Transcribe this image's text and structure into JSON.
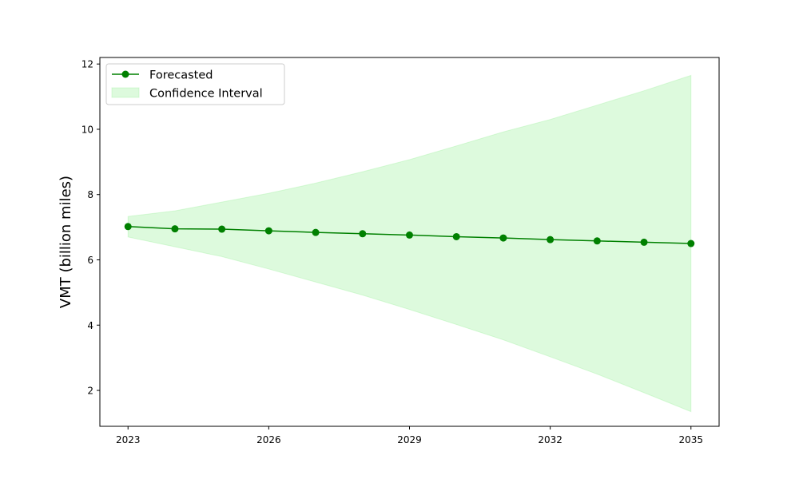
{
  "chart_data": {
    "type": "line",
    "title": "",
    "xlabel": "",
    "ylabel": "VMT (billion miles)",
    "xlim": [
      2022.4,
      2035.6
    ],
    "ylim": [
      0.9,
      12.2
    ],
    "x_ticks": [
      2023,
      2026,
      2029,
      2032,
      2035
    ],
    "y_ticks": [
      2,
      4,
      6,
      8,
      10,
      12
    ],
    "grid": false,
    "legend_position": "top-left",
    "series": [
      {
        "name": "Forecasted",
        "color": "#008000",
        "marker": "circle",
        "x": [
          2023,
          2024,
          2025,
          2026,
          2027,
          2028,
          2029,
          2030,
          2031,
          2032,
          2033,
          2034,
          2035
        ],
        "y": [
          7.02,
          6.95,
          6.94,
          6.89,
          6.84,
          6.8,
          6.76,
          6.71,
          6.67,
          6.62,
          6.58,
          6.54,
          6.5
        ]
      }
    ],
    "confidence_interval": {
      "name": "Confidence Interval",
      "color": "#90ee90",
      "x": [
        2023,
        2024,
        2025,
        2026,
        2027,
        2028,
        2029,
        2030,
        2031,
        2032,
        2033,
        2034,
        2035
      ],
      "lower": [
        6.7,
        6.4,
        6.1,
        5.72,
        5.32,
        4.92,
        4.48,
        4.02,
        3.55,
        3.03,
        2.5,
        1.93,
        1.35
      ],
      "upper": [
        7.33,
        7.5,
        7.77,
        8.04,
        8.35,
        8.7,
        9.07,
        9.49,
        9.92,
        10.3,
        10.74,
        11.18,
        11.65
      ]
    }
  }
}
